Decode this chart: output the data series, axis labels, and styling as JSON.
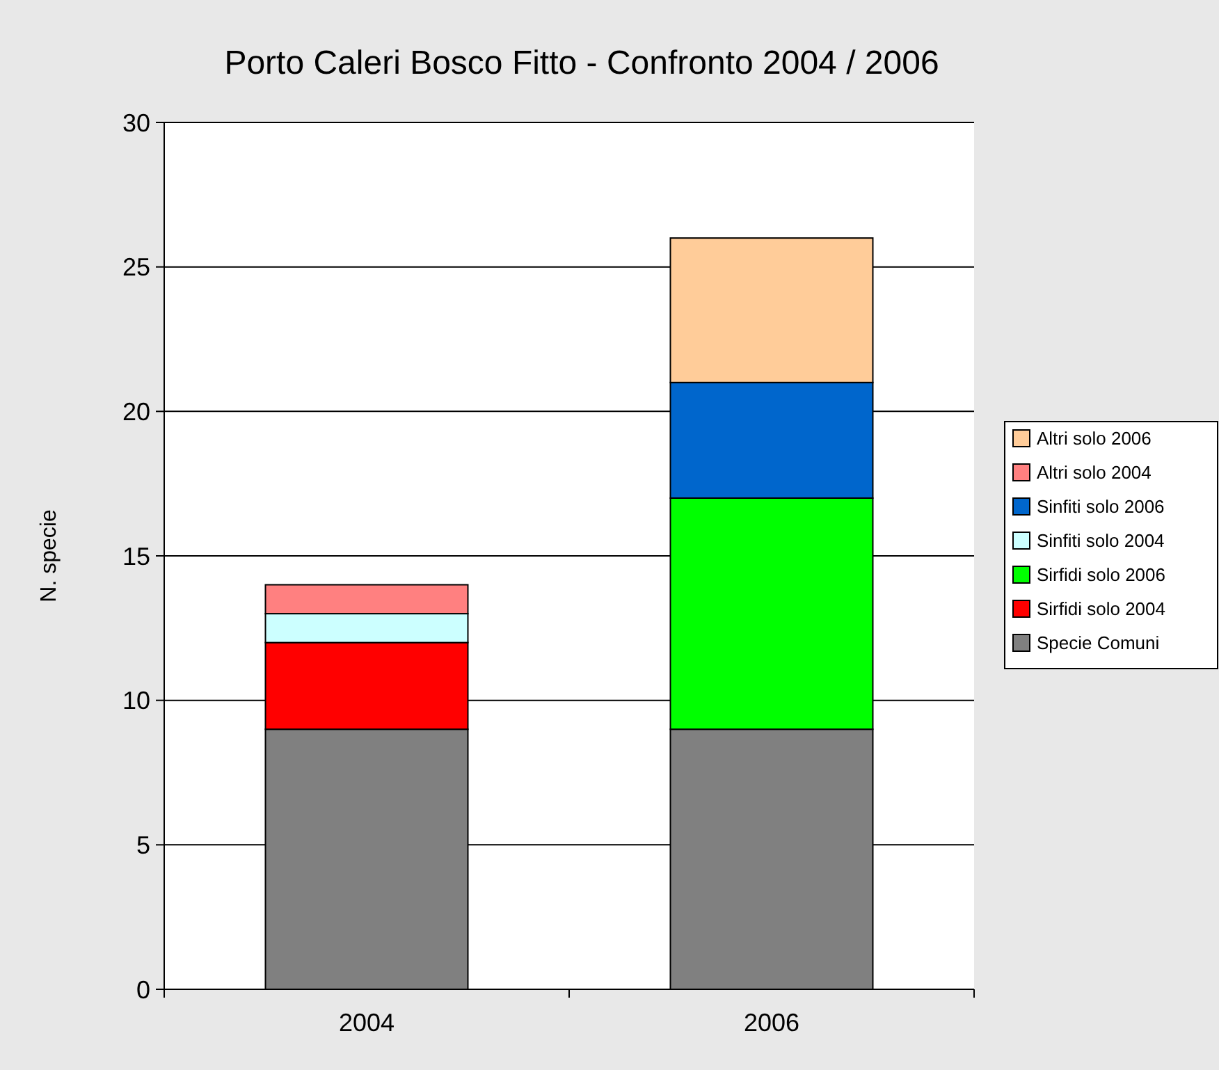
{
  "chart_data": {
    "type": "bar",
    "title": "Porto Caleri Bosco Fitto - Confronto 2004 / 2006",
    "ylabel": "N. specie",
    "categories": [
      "2004",
      "2006"
    ],
    "stacked": true,
    "ylim": [
      0,
      30
    ],
    "yticks": [
      0,
      5,
      10,
      15,
      20,
      25,
      30
    ],
    "grid": "y",
    "legend": "right",
    "series": [
      {
        "name": "Specie Comuni",
        "color": "#808080",
        "values": [
          9,
          9
        ]
      },
      {
        "name": "Sirfidi solo 2004",
        "color": "#ff0000",
        "values": [
          3,
          null
        ]
      },
      {
        "name": "Sirfidi solo 2006",
        "color": "#00ff00",
        "values": [
          null,
          8
        ]
      },
      {
        "name": "Sinfiti solo 2004",
        "color": "#ccffff",
        "values": [
          1,
          null
        ]
      },
      {
        "name": "Sinfiti solo 2006",
        "color": "#0066cc",
        "values": [
          null,
          4
        ]
      },
      {
        "name": "Altri solo 2004",
        "color": "#ff8080",
        "values": [
          1,
          null
        ]
      },
      {
        "name": "Altri solo 2006",
        "color": "#ffcc99",
        "values": [
          null,
          5
        ]
      }
    ]
  }
}
